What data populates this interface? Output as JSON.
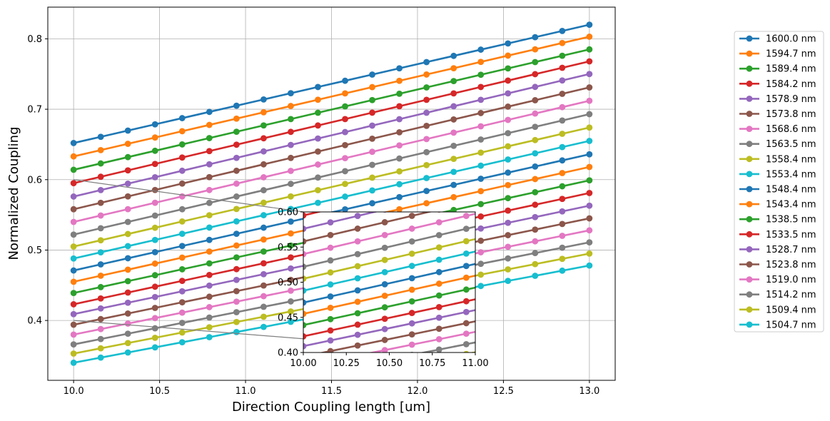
{
  "chart_data": {
    "type": "line",
    "title": "",
    "xlabel": "Direction Coupling length [um]",
    "ylabel": "Normalized Coupling",
    "xlim": [
      9.85,
      13.15
    ],
    "ylim": [
      0.315,
      0.845
    ],
    "xticks": [
      "10.0",
      "10.5",
      "11.0",
      "11.5",
      "12.0",
      "12.5",
      "13.0"
    ],
    "yticks": [
      "0.4",
      "0.5",
      "0.6",
      "0.7",
      "0.8"
    ],
    "grid": true,
    "legend": "right",
    "x": [
      10.0,
      10.157894736842104,
      10.31578947368421,
      10.473684210526315,
      10.631578947368421,
      10.789473684210526,
      10.947368421052632,
      11.105263157894736,
      11.263157894736842,
      11.421052631578947,
      11.578947368421053,
      11.736842105263158,
      11.894736842105264,
      12.052631578947368,
      12.210526315789474,
      12.368421052631579,
      12.526315789473685,
      12.68421052631579,
      12.842105263157894,
      13.0
    ],
    "series": [
      {
        "name": "1600.0 nm",
        "color": "#1f77b4",
        "start": 0.652,
        "end": 0.82
      },
      {
        "name": "1594.7 nm",
        "color": "#ff7f0e",
        "start": 0.633,
        "end": 0.803
      },
      {
        "name": "1589.4 nm",
        "color": "#2ca02c",
        "start": 0.614,
        "end": 0.785
      },
      {
        "name": "1584.2 nm",
        "color": "#d62728",
        "start": 0.595,
        "end": 0.768
      },
      {
        "name": "1578.9 nm",
        "color": "#9467bd",
        "start": 0.576,
        "end": 0.75
      },
      {
        "name": "1573.8 nm",
        "color": "#8c564b",
        "start": 0.558,
        "end": 0.731
      },
      {
        "name": "1568.6 nm",
        "color": "#e377c2",
        "start": 0.54,
        "end": 0.712
      },
      {
        "name": "1563.5 nm",
        "color": "#7f7f7f",
        "start": 0.522,
        "end": 0.693
      },
      {
        "name": "1558.4 nm",
        "color": "#bcbd22",
        "start": 0.505,
        "end": 0.674
      },
      {
        "name": "1553.4 nm",
        "color": "#17becf",
        "start": 0.488,
        "end": 0.655
      },
      {
        "name": "1548.4 nm",
        "color": "#1f77b4",
        "start": 0.471,
        "end": 0.636
      },
      {
        "name": "1543.4 nm",
        "color": "#ff7f0e",
        "start": 0.455,
        "end": 0.618
      },
      {
        "name": "1538.5 nm",
        "color": "#2ca02c",
        "start": 0.439,
        "end": 0.599
      },
      {
        "name": "1533.5 nm",
        "color": "#d62728",
        "start": 0.423,
        "end": 0.581
      },
      {
        "name": "1528.7 nm",
        "color": "#9467bd",
        "start": 0.409,
        "end": 0.563
      },
      {
        "name": "1523.8 nm",
        "color": "#8c564b",
        "start": 0.394,
        "end": 0.545
      },
      {
        "name": "1519.0 nm",
        "color": "#e377c2",
        "start": 0.38,
        "end": 0.528
      },
      {
        "name": "1514.2 nm",
        "color": "#7f7f7f",
        "start": 0.366,
        "end": 0.511
      },
      {
        "name": "1509.4 nm",
        "color": "#bcbd22",
        "start": 0.353,
        "end": 0.495
      },
      {
        "name": "1504.7 nm",
        "color": "#17becf",
        "start": 0.34,
        "end": 0.478
      }
    ],
    "inset": {
      "xlim": [
        10.0,
        11.0
      ],
      "ylim": [
        0.4,
        0.6
      ],
      "xticks": [
        "10.00",
        "10.25",
        "10.50",
        "10.75",
        "11.00"
      ],
      "yticks": [
        "0.40",
        "0.45",
        "0.50",
        "0.55",
        "0.60"
      ]
    }
  }
}
